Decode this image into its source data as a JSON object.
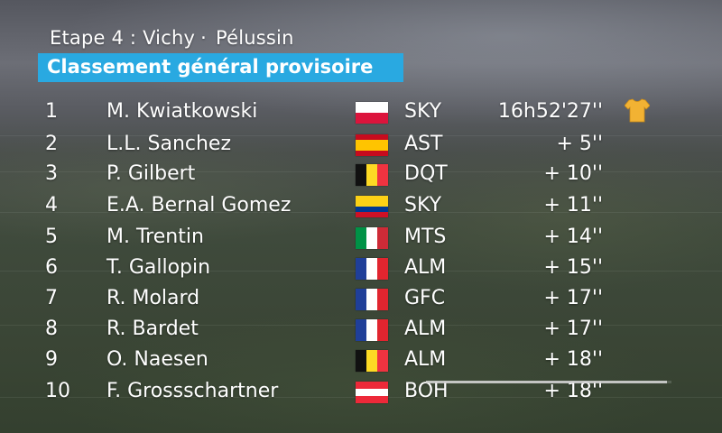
{
  "header": {
    "stage_label": "Etape 4 : Vichy",
    "stage_separator": "·",
    "stage_destination": "Pélussin",
    "banner_title": "Classement général provisoire"
  },
  "standings": [
    {
      "position": "1",
      "rider": "M. Kwiatkowski",
      "flag": "pl",
      "flag_icon": "poland-flag-icon",
      "team": "SKY",
      "time": "16h52'27''",
      "leader": true
    },
    {
      "position": "2",
      "rider": "L.L. Sanchez",
      "flag": "es",
      "flag_icon": "spain-flag-icon",
      "team": "AST",
      "time": "+ 5''"
    },
    {
      "position": "3",
      "rider": "P. Gilbert",
      "flag": "be",
      "flag_icon": "belgium-flag-icon",
      "team": "DQT",
      "time": "+ 10''"
    },
    {
      "position": "4",
      "rider": "E.A. Bernal Gomez",
      "flag": "co",
      "flag_icon": "colombia-flag-icon",
      "team": "SKY",
      "time": "+ 11''"
    },
    {
      "position": "5",
      "rider": "M. Trentin",
      "flag": "it",
      "flag_icon": "italy-flag-icon",
      "team": "MTS",
      "time": "+ 14''"
    },
    {
      "position": "6",
      "rider": "T. Gallopin",
      "flag": "fr",
      "flag_icon": "france-flag-icon",
      "team": "ALM",
      "time": "+ 15''"
    },
    {
      "position": "7",
      "rider": "R. Molard",
      "flag": "fr",
      "flag_icon": "france-flag-icon",
      "team": "GFC",
      "time": "+ 17''"
    },
    {
      "position": "8",
      "rider": "R. Bardet",
      "flag": "fr",
      "flag_icon": "france-flag-icon",
      "team": "ALM",
      "time": "+ 17''"
    },
    {
      "position": "9",
      "rider": "O. Naesen",
      "flag": "be",
      "flag_icon": "belgium-flag-icon",
      "team": "ALM",
      "time": "+ 18''"
    },
    {
      "position": "10",
      "rider": "F. Grossschartner",
      "flag": "at",
      "flag_icon": "austria-flag-icon",
      "team": "BOH",
      "time": "+ 18''"
    }
  ],
  "leader_icon": "yellow-jersey-icon",
  "progress": {
    "fraction": 0.98
  },
  "colors": {
    "banner": "#29a9e1",
    "jersey": "#f2b233",
    "text": "#ffffff"
  }
}
